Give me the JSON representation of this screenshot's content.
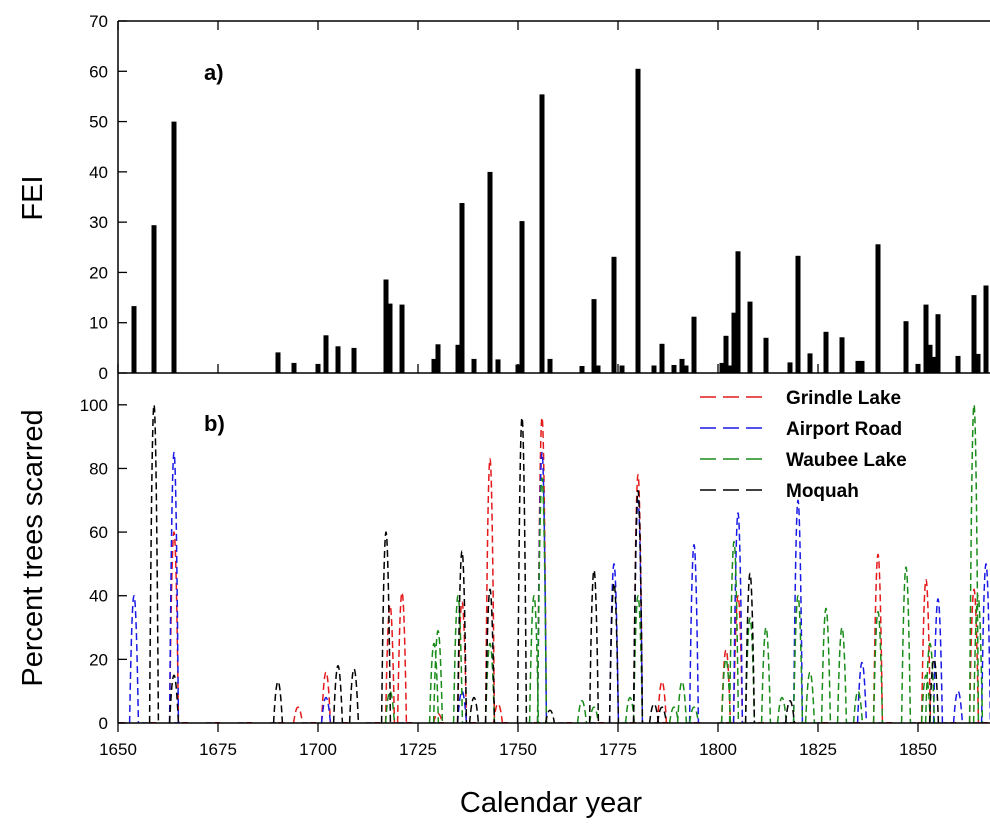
{
  "figure": {
    "xlabel": "Calendar year"
  },
  "chart_data": [
    {
      "type": "bar",
      "panel_label": "a)",
      "ylabel": "FEI",
      "xlim": [
        1650,
        1868
      ],
      "ylim": [
        0,
        70
      ],
      "xticks": [
        1650,
        1675,
        1700,
        1725,
        1750,
        1775,
        1800,
        1825,
        1850
      ],
      "yticks": [
        0,
        10,
        20,
        30,
        40,
        50,
        60,
        70
      ],
      "ytick_labels": [
        "0",
        "10",
        "20",
        "30",
        "40",
        "50",
        "60",
        "70"
      ],
      "series": [
        {
          "name": "FEI",
          "color": "#000000",
          "points": [
            [
              1654,
              13.3
            ],
            [
              1659,
              29.4
            ],
            [
              1664,
              50.0
            ],
            [
              1690,
              4.1
            ],
            [
              1694,
              2.0
            ],
            [
              1700,
              1.8
            ],
            [
              1702,
              7.5
            ],
            [
              1705,
              5.3
            ],
            [
              1709,
              5.0
            ],
            [
              1717,
              18.6
            ],
            [
              1718,
              13.8
            ],
            [
              1721,
              13.6
            ],
            [
              1729,
              2.8
            ],
            [
              1730,
              5.7
            ],
            [
              1735,
              5.6
            ],
            [
              1736,
              33.8
            ],
            [
              1739,
              2.8
            ],
            [
              1743,
              40.0
            ],
            [
              1745,
              2.7
            ],
            [
              1750,
              1.7
            ],
            [
              1751,
              30.2
            ],
            [
              1756,
              55.4
            ],
            [
              1758,
              2.8
            ],
            [
              1766,
              1.4
            ],
            [
              1769,
              14.7
            ],
            [
              1770,
              1.5
            ],
            [
              1774,
              23.1
            ],
            [
              1776,
              1.5
            ],
            [
              1780,
              60.5
            ],
            [
              1784,
              1.5
            ],
            [
              1786,
              5.8
            ],
            [
              1789,
              1.6
            ],
            [
              1791,
              2.8
            ],
            [
              1792,
              1.5
            ],
            [
              1794,
              11.2
            ],
            [
              1801,
              2.0
            ],
            [
              1802,
              7.4
            ],
            [
              1803,
              1.5
            ],
            [
              1804,
              12.0
            ],
            [
              1805,
              24.2
            ],
            [
              1808,
              14.2
            ],
            [
              1812,
              7.0
            ],
            [
              1818,
              2.1
            ],
            [
              1820,
              23.3
            ],
            [
              1823,
              3.9
            ],
            [
              1827,
              8.2
            ],
            [
              1831,
              7.1
            ],
            [
              1835,
              2.4
            ],
            [
              1836,
              2.4
            ],
            [
              1840,
              25.6
            ],
            [
              1847,
              10.3
            ],
            [
              1850,
              1.8
            ],
            [
              1852,
              13.6
            ],
            [
              1853,
              5.6
            ],
            [
              1854,
              3.2
            ],
            [
              1855,
              11.7
            ],
            [
              1860,
              3.4
            ],
            [
              1864,
              15.5
            ],
            [
              1865,
              3.8
            ],
            [
              1867,
              17.4
            ]
          ]
        }
      ]
    },
    {
      "type": "line",
      "panel_label": "b)",
      "ylabel": "Percent trees scarred",
      "xlim": [
        1650,
        1868
      ],
      "ylim": [
        0,
        110
      ],
      "xticks": [
        1650,
        1675,
        1700,
        1725,
        1750,
        1775,
        1800,
        1825,
        1850
      ],
      "xtick_labels": [
        "1650",
        "1675",
        "1700",
        "1725",
        "1750",
        "1775",
        "1800",
        "1825",
        "1850"
      ],
      "yticks": [
        0,
        20,
        40,
        60,
        80,
        100
      ],
      "ytick_labels": [
        "0",
        "20",
        "40",
        "60",
        "80",
        "100"
      ],
      "legend_position": "top-right",
      "series": [
        {
          "name": "Grindle Lake",
          "color": "#e41a1c",
          "peaks": [
            [
              1664,
              60
            ],
            [
              1695,
              5
            ],
            [
              1702,
              16
            ],
            [
              1718,
              37
            ],
            [
              1721,
              41
            ],
            [
              1730,
              3
            ],
            [
              1736,
              38
            ],
            [
              1743,
              83
            ],
            [
              1745,
              6
            ],
            [
              1756,
              96
            ],
            [
              1780,
              78
            ],
            [
              1786,
              13
            ],
            [
              1802,
              23
            ],
            [
              1805,
              40
            ],
            [
              1840,
              53
            ],
            [
              1852,
              45
            ],
            [
              1864,
              42
            ]
          ]
        },
        {
          "name": "Airport Road",
          "color": "#1a1ae6",
          "peaks": [
            [
              1654,
              40
            ],
            [
              1664,
              85
            ],
            [
              1702,
              8
            ],
            [
              1736,
              10
            ],
            [
              1756,
              85
            ],
            [
              1774,
              50
            ],
            [
              1780,
              70
            ],
            [
              1794,
              56
            ],
            [
              1805,
              66
            ],
            [
              1820,
              70
            ],
            [
              1836,
              19
            ],
            [
              1855,
              39
            ],
            [
              1860,
              10
            ],
            [
              1867,
              50
            ]
          ]
        },
        {
          "name": "Waubee Lake",
          "color": "#1a8c1a",
          "peaks": [
            [
              1718,
              10
            ],
            [
              1729,
              25
            ],
            [
              1730,
              29
            ],
            [
              1735,
              40
            ],
            [
              1743,
              25
            ],
            [
              1754,
              40
            ],
            [
              1756,
              77
            ],
            [
              1766,
              7
            ],
            [
              1769,
              5
            ],
            [
              1778,
              8
            ],
            [
              1780,
              40
            ],
            [
              1789,
              5
            ],
            [
              1791,
              13
            ],
            [
              1794,
              5
            ],
            [
              1802,
              20
            ],
            [
              1804,
              57
            ],
            [
              1808,
              33
            ],
            [
              1812,
              30
            ],
            [
              1816,
              8
            ],
            [
              1820,
              40
            ],
            [
              1823,
              16
            ],
            [
              1827,
              36
            ],
            [
              1831,
              30
            ],
            [
              1835,
              10
            ],
            [
              1840,
              35
            ],
            [
              1847,
              49
            ],
            [
              1852,
              15
            ],
            [
              1853,
              25
            ],
            [
              1864,
              100
            ],
            [
              1865,
              40
            ]
          ]
        },
        {
          "name": "Moquah",
          "color": "#000000",
          "peaks": [
            [
              1659,
              100
            ],
            [
              1664,
              15
            ],
            [
              1690,
              13
            ],
            [
              1705,
              18
            ],
            [
              1709,
              17
            ],
            [
              1717,
              60
            ],
            [
              1736,
              54
            ],
            [
              1739,
              8
            ],
            [
              1743,
              42
            ],
            [
              1751,
              96
            ],
            [
              1758,
              4
            ],
            [
              1769,
              48
            ],
            [
              1774,
              44
            ],
            [
              1780,
              73
            ],
            [
              1784,
              6
            ],
            [
              1786,
              5
            ],
            [
              1808,
              47
            ],
            [
              1818,
              7
            ],
            [
              1854,
              20
            ]
          ]
        }
      ]
    }
  ]
}
